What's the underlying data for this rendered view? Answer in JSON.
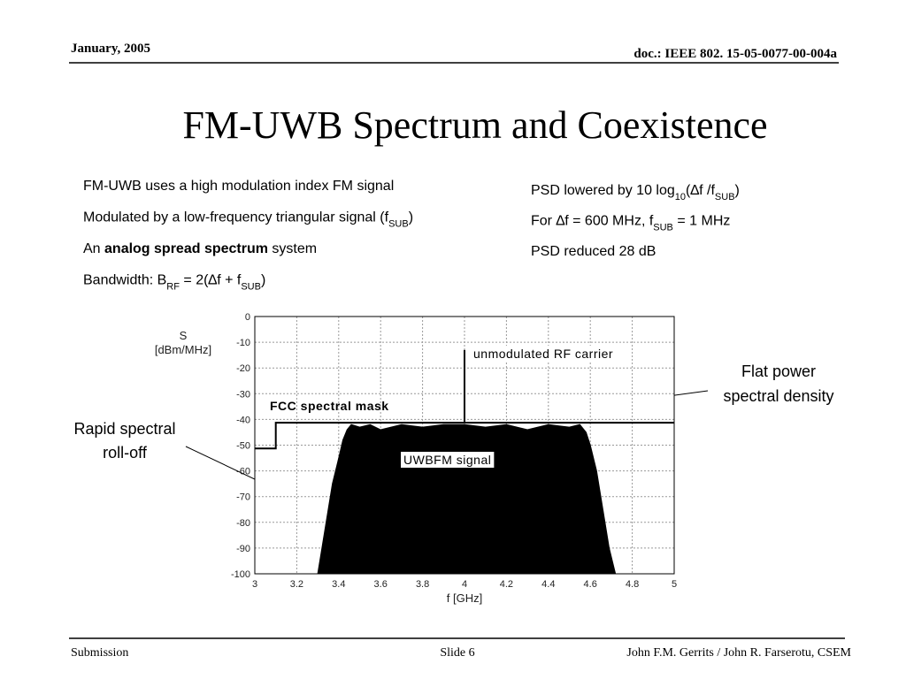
{
  "header": {
    "date": "January, 2005",
    "doc": "doc.: IEEE 802. 15-05-0077-00-004a"
  },
  "title": "FM-UWB Spectrum and Coexistence",
  "left_bullets": [
    [
      {
        "text": "FM-UWB uses a high modulation index FM signal"
      }
    ],
    [
      {
        "text": "Modulated by a low-frequency triangular signal (f"
      },
      {
        "text": "SUB",
        "sub": true
      },
      {
        "text": ")"
      }
    ],
    [
      {
        "text": "An "
      },
      {
        "text": "analog spread spectrum",
        "bold": true
      },
      {
        "text": " system"
      }
    ],
    [
      {
        "text": "Bandwidth: B"
      },
      {
        "text": "RF",
        "sub": true
      },
      {
        "text": " = 2(∆f + f"
      },
      {
        "text": "SUB",
        "sub": true
      },
      {
        "text": ")"
      }
    ]
  ],
  "right_bullets": [
    [
      {
        "text": "PSD lowered by 10 log"
      },
      {
        "text": "10",
        "sub": true
      },
      {
        "text": "(∆f /f"
      },
      {
        "text": "SUB",
        "sub": true
      },
      {
        "text": ")"
      }
    ],
    [
      {
        "text": "For ∆f = 600 MHz, f"
      },
      {
        "text": "SUB",
        "sub": true
      },
      {
        "text": " = 1 MHz"
      }
    ],
    [
      {
        "text": "PSD reduced 28 dB"
      }
    ]
  ],
  "chart_data": {
    "type": "line",
    "x_label": "f [GHz]",
    "y_label": [
      "S",
      "[dBm/MHz]"
    ],
    "xlim": [
      3,
      5
    ],
    "xticks": [
      3,
      3.2,
      3.4,
      3.6,
      3.8,
      4,
      4.2,
      4.4,
      4.6,
      4.8,
      5
    ],
    "ylim": [
      -100,
      0
    ],
    "yticks": [
      0,
      -10,
      -20,
      -30,
      -40,
      -50,
      -60,
      -70,
      -80,
      -90,
      -100
    ],
    "grid": true,
    "series": [
      {
        "name": "FCC spectral mask",
        "color": "#000000",
        "fill": false,
        "x": [
          3,
          3.1,
          3.1,
          5
        ],
        "values": [
          -51.3,
          -51.3,
          -41.3,
          -41.3
        ]
      },
      {
        "name": "unmodulated RF carrier",
        "color": "#000000",
        "fill": false,
        "x": [
          4,
          4
        ],
        "values": [
          -41.3,
          -13
        ]
      },
      {
        "name": "UWBFM signal",
        "color": "#000000",
        "fill": true,
        "x": [
          3.3,
          3.34,
          3.37,
          3.4,
          3.42,
          3.44,
          3.46,
          3.5,
          3.55,
          3.6,
          3.7,
          3.8,
          3.9,
          4.0,
          4.1,
          4.2,
          4.3,
          4.4,
          4.5,
          4.55,
          4.58,
          4.6,
          4.63,
          4.66,
          4.69,
          4.72
        ],
        "values": [
          -100,
          -80,
          -65,
          -55,
          -48,
          -44,
          -42,
          -43,
          -42,
          -44,
          -42,
          -43,
          -42,
          -42,
          -43,
          -42,
          -44,
          -42,
          -43,
          -42,
          -45,
          -50,
          -60,
          -75,
          -90,
          -100
        ]
      }
    ],
    "annotations": [
      "Flat power",
      "spectral density",
      "Rapid spectral",
      "roll-off"
    ]
  },
  "footer": {
    "left": "Submission",
    "center": "Slide 6",
    "right": "John F.M. Gerrits / John R. Farserotu, CSEM"
  }
}
